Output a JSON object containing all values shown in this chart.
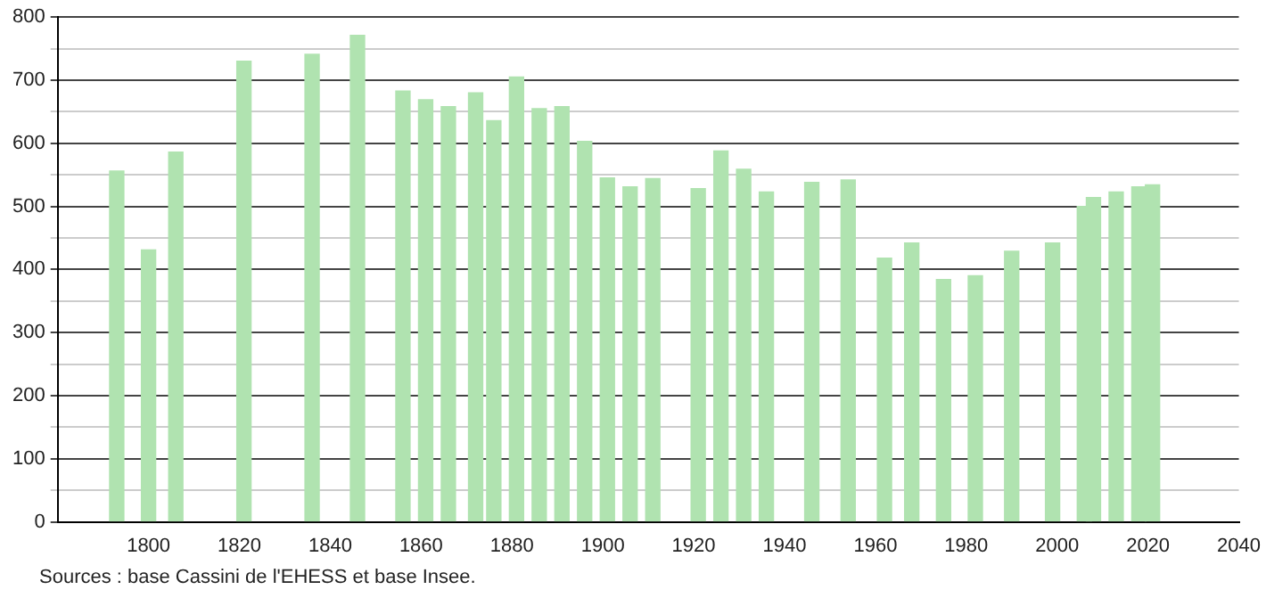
{
  "chart_data": {
    "type": "bar",
    "x": [
      1793,
      1800,
      1806,
      1821,
      1836,
      1846,
      1856,
      1861,
      1866,
      1872,
      1876,
      1881,
      1886,
      1891,
      1896,
      1901,
      1906,
      1911,
      1921,
      1926,
      1931,
      1936,
      1946,
      1954,
      1962,
      1968,
      1975,
      1982,
      1990,
      1999,
      2006,
      2008,
      2013,
      2018,
      2021
    ],
    "values": [
      556,
      431,
      586,
      730,
      741,
      771,
      683,
      669,
      658,
      680,
      636,
      705,
      655,
      658,
      603,
      545,
      531,
      544,
      528,
      588,
      559,
      523,
      538,
      542,
      418,
      442,
      384,
      390,
      429,
      442,
      500,
      514,
      523,
      531,
      534
    ],
    "color": "#b0e3b0",
    "xlim": [
      1780,
      2040
    ],
    "xticks": [
      1800,
      1820,
      1840,
      1860,
      1880,
      1900,
      1920,
      1940,
      1960,
      1980,
      2000,
      2020,
      2040
    ],
    "ylim": [
      0,
      800
    ],
    "yticks": [
      0,
      {
        "value": 50,
        "label": null
      },
      100,
      {
        "value": 150,
        "label": null
      },
      200,
      {
        "value": 250,
        "label": null
      },
      300,
      {
        "value": 350,
        "label": null
      },
      400,
      {
        "value": 450,
        "label": null
      },
      500,
      {
        "value": 550,
        "label": null
      },
      600,
      {
        "value": 650,
        "label": null
      },
      700,
      {
        "value": 750,
        "label": null
      },
      800
    ],
    "grid": "y",
    "annotations": [
      "Sources : base Cassini de l'EHESS et base Insee."
    ]
  }
}
